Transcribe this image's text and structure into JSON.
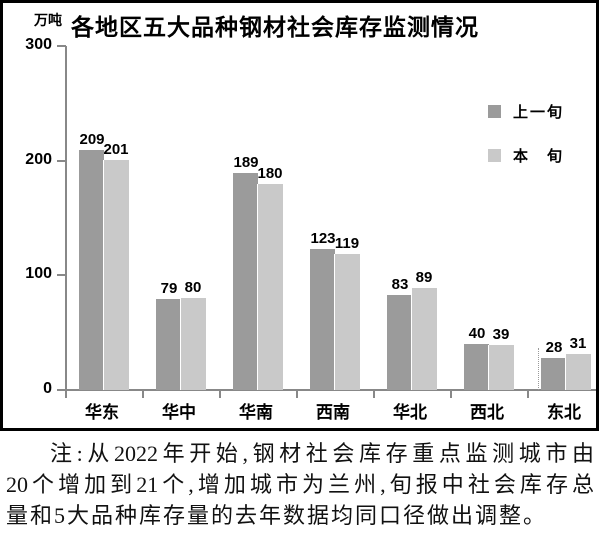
{
  "title": "各地区五大品种钢材社会库存监测情况",
  "unit_label": "万吨",
  "legend": {
    "series1": "上一旬",
    "series2": "本　旬"
  },
  "note": {
    "lines": [
      "注:从2022年开始,钢材社会库存重点监测城市由",
      "20个增加到21个,增加城市为兰州,旬报中社会库存总",
      "量和5大品种库存量的去年数据均同口径做出调整。"
    ]
  },
  "colors": {
    "series1_bar": "#9b9b9b",
    "series2_bar": "#c9c9c9",
    "axis": "#888888",
    "border": "#000000",
    "text": "#000000"
  },
  "chart_data": {
    "type": "bar",
    "title": "各地区五大品种钢材社会库存监测情况",
    "ylabel": "万吨",
    "xlabel": "",
    "categories": [
      "华东",
      "华中",
      "华南",
      "西南",
      "华北",
      "西北",
      "东北"
    ],
    "series": [
      {
        "name": "上一旬",
        "color": "#9b9b9b",
        "values": [
          209,
          79,
          189,
          123,
          83,
          40,
          28
        ]
      },
      {
        "name": "本旬",
        "color": "#c9c9c9",
        "values": [
          201,
          80,
          180,
          119,
          89,
          39,
          31
        ]
      }
    ],
    "ylim": [
      0,
      300
    ],
    "yticks": [
      0,
      100,
      200,
      300
    ],
    "grid": false,
    "legend_position": "upper right",
    "value_labels": true
  }
}
